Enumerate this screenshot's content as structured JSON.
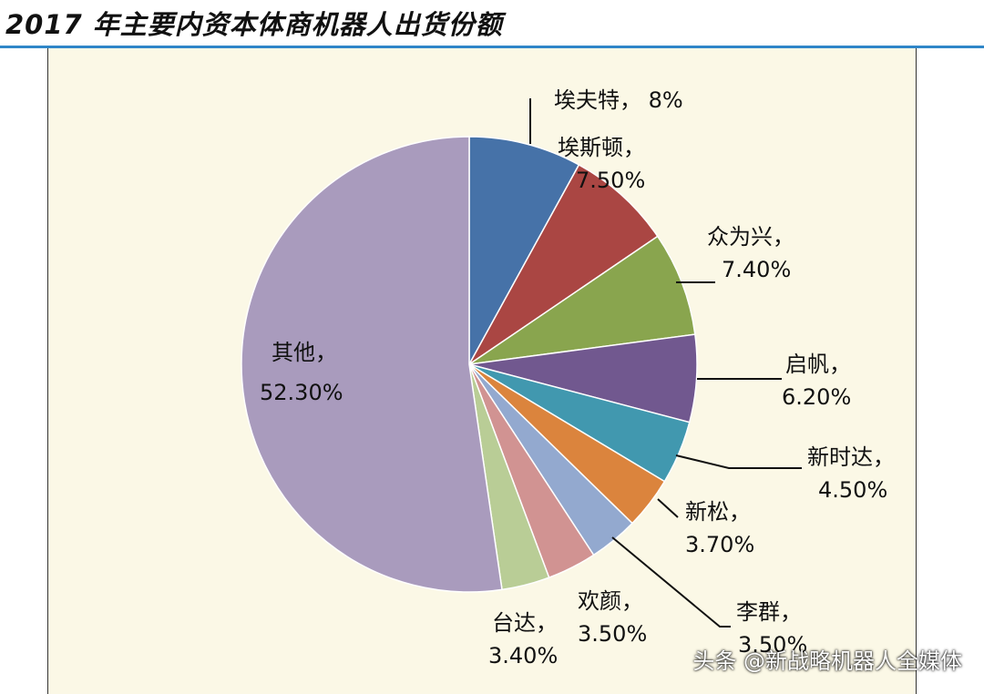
{
  "page": {
    "title": "2017 年主要内资本体商机器人出货份额",
    "watermark": "头条 @新战略机器人全媒体"
  },
  "colors": {
    "frame_background": "#fbf8e6",
    "header_rule": "#2f86c8"
  },
  "chart_data": {
    "type": "pie",
    "title": "",
    "start": "12 o'clock",
    "direction": "clockwise",
    "slices": [
      {
        "name": "埃夫特",
        "value": 8.0,
        "label_value": "8%",
        "color": "#4672a8"
      },
      {
        "name": "埃斯顿",
        "value": 7.5,
        "label_value": "7.50%",
        "color": "#aa4643"
      },
      {
        "name": "众为兴",
        "value": 7.4,
        "label_value": "7.40%",
        "color": "#89a54e"
      },
      {
        "name": "启帆",
        "value": 6.2,
        "label_value": "6.20%",
        "color": "#71588f"
      },
      {
        "name": "新时达",
        "value": 4.5,
        "label_value": "4.50%",
        "color": "#4198af"
      },
      {
        "name": "新松",
        "value": 3.7,
        "label_value": "3.70%",
        "color": "#db843d"
      },
      {
        "name": "李群",
        "value": 3.5,
        "label_value": "3.50%",
        "color": "#93a9cf"
      },
      {
        "name": "欢颜",
        "value": 3.5,
        "label_value": "3.50%",
        "color": "#d19392"
      },
      {
        "name": "台达",
        "value": 3.4,
        "label_value": "3.40%",
        "color": "#b9cd96"
      },
      {
        "name": "其他",
        "value": 52.3,
        "label_value": "52.30%",
        "color": "#a99bbd"
      }
    ]
  }
}
